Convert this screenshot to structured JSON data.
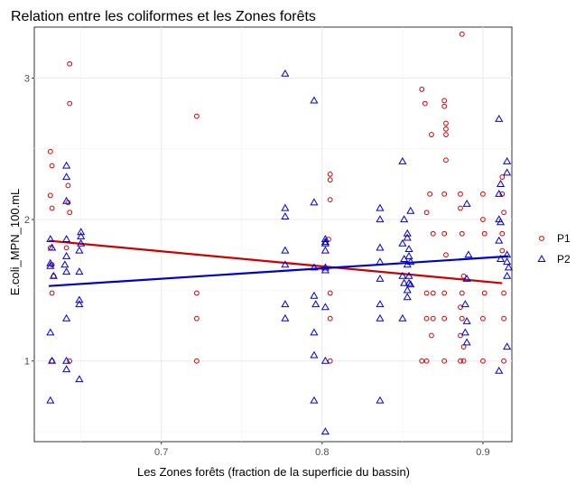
{
  "chart_data": {
    "type": "scatter",
    "title": "Relation entre les coliformes et les Zones forêts",
    "xlabel": "Les Zones forêts (fraction de la superficie du bassin)",
    "ylabel": "E.coli_MPN_100.mL",
    "x_ticks": [
      0.7,
      0.8,
      0.9
    ],
    "y_ticks": [
      1,
      2,
      3
    ],
    "y_tick_labels": [
      "1",
      "2",
      "3"
    ],
    "xlim": [
      0.621,
      0.918
    ],
    "ylim": [
      0.43,
      3.36
    ],
    "grid": true,
    "legend_position": "right",
    "colors": {
      "P1": "#cc0000",
      "P2": "#0000cc"
    },
    "series": [
      {
        "name": "P1",
        "marker": "circle",
        "trend": [
          [
            0.63,
            1.85
          ],
          [
            0.912,
            1.55
          ]
        ],
        "points": [
          [
            0.631,
            2.48
          ],
          [
            0.632,
            2.38
          ],
          [
            0.631,
            2.17
          ],
          [
            0.632,
            2.08
          ],
          [
            0.631,
            1.8
          ],
          [
            0.632,
            1.68
          ],
          [
            0.633,
            1.6
          ],
          [
            0.632,
            1.48
          ],
          [
            0.632,
            1.0
          ],
          [
            0.643,
            3.1
          ],
          [
            0.643,
            2.82
          ],
          [
            0.642,
            2.24
          ],
          [
            0.642,
            2.12
          ],
          [
            0.643,
            2.05
          ],
          [
            0.641,
            1.8
          ],
          [
            0.643,
            1.0
          ],
          [
            0.722,
            2.73
          ],
          [
            0.722,
            1.48
          ],
          [
            0.722,
            1.3
          ],
          [
            0.722,
            1.0
          ],
          [
            0.805,
            2.32
          ],
          [
            0.805,
            2.28
          ],
          [
            0.805,
            2.14
          ],
          [
            0.804,
            1.86
          ],
          [
            0.805,
            1.48
          ],
          [
            0.805,
            1.3
          ],
          [
            0.805,
            1.0
          ],
          [
            0.862,
            2.92
          ],
          [
            0.864,
            2.82
          ],
          [
            0.868,
            2.6
          ],
          [
            0.876,
            2.84
          ],
          [
            0.876,
            2.8
          ],
          [
            0.877,
            2.68
          ],
          [
            0.877,
            2.64
          ],
          [
            0.877,
            2.6
          ],
          [
            0.877,
            2.42
          ],
          [
            0.887,
            3.31
          ],
          [
            0.867,
            2.18
          ],
          [
            0.876,
            2.18
          ],
          [
            0.886,
            2.18
          ],
          [
            0.865,
            2.05
          ],
          [
            0.869,
            1.9
          ],
          [
            0.876,
            1.9
          ],
          [
            0.886,
            2.08
          ],
          [
            0.887,
            1.9
          ],
          [
            0.877,
            1.75
          ],
          [
            0.865,
            1.48
          ],
          [
            0.876,
            1.48
          ],
          [
            0.869,
            1.48
          ],
          [
            0.888,
            1.6
          ],
          [
            0.887,
            1.48
          ],
          [
            0.865,
            1.3
          ],
          [
            0.869,
            1.3
          ],
          [
            0.876,
            1.3
          ],
          [
            0.886,
            1.38
          ],
          [
            0.887,
            1.3
          ],
          [
            0.868,
            1.18
          ],
          [
            0.886,
            1.18
          ],
          [
            0.888,
            1.1
          ],
          [
            0.862,
            1.0
          ],
          [
            0.865,
            1.0
          ],
          [
            0.876,
            1.0
          ],
          [
            0.886,
            1.0
          ],
          [
            0.888,
            1.0
          ],
          [
            0.9,
            2.18
          ],
          [
            0.9,
            2.0
          ],
          [
            0.901,
            1.9
          ],
          [
            0.901,
            1.48
          ],
          [
            0.9,
            1.3
          ],
          [
            0.9,
            1.0
          ],
          [
            0.912,
            2.3
          ],
          [
            0.912,
            2.18
          ],
          [
            0.913,
            2.05
          ],
          [
            0.912,
            1.9
          ],
          [
            0.912,
            1.78
          ],
          [
            0.913,
            1.48
          ],
          [
            0.913,
            1.3
          ],
          [
            0.913,
            1.0
          ]
        ]
      },
      {
        "name": "P2",
        "marker": "triangle",
        "trend": [
          [
            0.63,
            1.53
          ],
          [
            0.916,
            1.74
          ]
        ],
        "points": [
          [
            0.631,
            1.86
          ],
          [
            0.632,
            1.8
          ],
          [
            0.631,
            1.69
          ],
          [
            0.631,
            1.67
          ],
          [
            0.633,
            1.6
          ],
          [
            0.631,
            1.2
          ],
          [
            0.632,
            1.0
          ],
          [
            0.631,
            0.72
          ],
          [
            0.641,
            2.38
          ],
          [
            0.641,
            2.3
          ],
          [
            0.641,
            2.13
          ],
          [
            0.641,
            1.86
          ],
          [
            0.641,
            1.74
          ],
          [
            0.64,
            1.68
          ],
          [
            0.641,
            1.63
          ],
          [
            0.641,
            1.3
          ],
          [
            0.641,
            1.0
          ],
          [
            0.641,
            0.94
          ],
          [
            0.65,
            1.91
          ],
          [
            0.65,
            1.88
          ],
          [
            0.65,
            1.83
          ],
          [
            0.649,
            1.78
          ],
          [
            0.649,
            1.63
          ],
          [
            0.649,
            1.43
          ],
          [
            0.649,
            1.4
          ],
          [
            0.649,
            0.87
          ],
          [
            0.777,
            3.03
          ],
          [
            0.777,
            2.08
          ],
          [
            0.777,
            2.02
          ],
          [
            0.777,
            1.78
          ],
          [
            0.777,
            1.68
          ],
          [
            0.777,
            1.4
          ],
          [
            0.777,
            1.3
          ],
          [
            0.795,
            2.84
          ],
          [
            0.795,
            2.12
          ],
          [
            0.795,
            1.66
          ],
          [
            0.795,
            1.46
          ],
          [
            0.796,
            1.4
          ],
          [
            0.795,
            1.2
          ],
          [
            0.795,
            1.04
          ],
          [
            0.795,
            0.72
          ],
          [
            0.802,
            1.86
          ],
          [
            0.802,
            1.84
          ],
          [
            0.802,
            1.83
          ],
          [
            0.802,
            1.78
          ],
          [
            0.802,
            1.66
          ],
          [
            0.802,
            1.64
          ],
          [
            0.802,
            1.38
          ],
          [
            0.802,
            1.0
          ],
          [
            0.802,
            0.5
          ],
          [
            0.836,
            2.08
          ],
          [
            0.836,
            2.0
          ],
          [
            0.836,
            1.8
          ],
          [
            0.836,
            1.7
          ],
          [
            0.836,
            1.58
          ],
          [
            0.836,
            1.4
          ],
          [
            0.836,
            1.3
          ],
          [
            0.836,
            0.72
          ],
          [
            0.85,
            2.41
          ],
          [
            0.851,
            2.0
          ],
          [
            0.85,
            1.83
          ],
          [
            0.851,
            1.72
          ],
          [
            0.85,
            1.6
          ],
          [
            0.851,
            1.55
          ],
          [
            0.85,
            1.3
          ],
          [
            0.853,
            1.9
          ],
          [
            0.853,
            1.87
          ],
          [
            0.854,
            1.79
          ],
          [
            0.854,
            1.74
          ],
          [
            0.853,
            1.68
          ],
          [
            0.854,
            1.6
          ],
          [
            0.854,
            1.55
          ],
          [
            0.853,
            1.5
          ],
          [
            0.853,
            1.45
          ],
          [
            0.855,
            2.06
          ],
          [
            0.855,
            1.7
          ],
          [
            0.855,
            1.54
          ],
          [
            0.89,
            2.11
          ],
          [
            0.891,
            1.75
          ],
          [
            0.89,
            1.58
          ],
          [
            0.889,
            1.4
          ],
          [
            0.89,
            1.28
          ],
          [
            0.889,
            1.2
          ],
          [
            0.89,
            1.13
          ],
          [
            0.91,
            2.71
          ],
          [
            0.911,
            2.25
          ],
          [
            0.91,
            2.18
          ],
          [
            0.91,
            2.0
          ],
          [
            0.911,
            1.98
          ],
          [
            0.91,
            1.85
          ],
          [
            0.911,
            1.72
          ],
          [
            0.91,
            0.93
          ],
          [
            0.915,
            2.41
          ],
          [
            0.915,
            2.33
          ],
          [
            0.915,
            1.75
          ],
          [
            0.915,
            1.7
          ],
          [
            0.916,
            1.66
          ],
          [
            0.915,
            1.6
          ],
          [
            0.915,
            1.1
          ]
        ]
      }
    ]
  }
}
